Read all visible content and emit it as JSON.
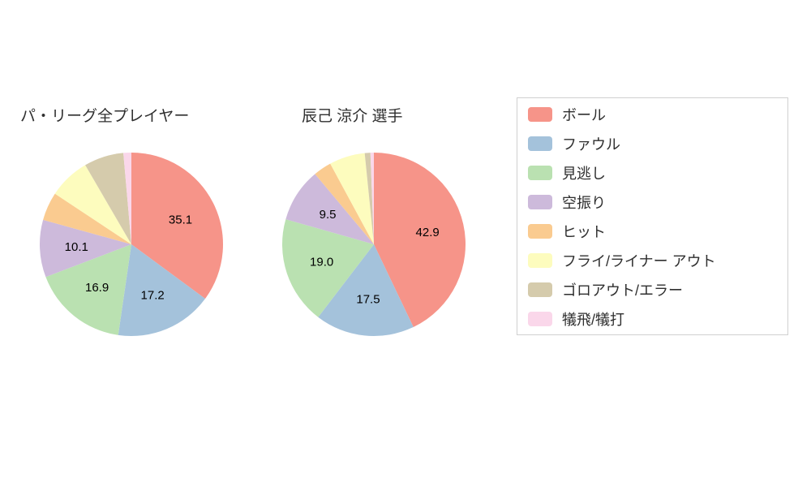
{
  "chart_data": [
    {
      "type": "pie",
      "title": "パ・リーグ全プレイヤー",
      "direction": "clockwise",
      "start_angle_deg": 0,
      "slices": [
        {
          "name": "ボール",
          "value": 35.1,
          "label": "35.1"
        },
        {
          "name": "ファウル",
          "value": 17.2,
          "label": "17.2"
        },
        {
          "name": "見逃し",
          "value": 16.9,
          "label": "16.9"
        },
        {
          "name": "空振り",
          "value": 10.1,
          "label": "10.1"
        },
        {
          "name": "ヒット",
          "value": 5.0,
          "label": ""
        },
        {
          "name": "フライ/ライナー アウト",
          "value": 7.3,
          "label": ""
        },
        {
          "name": "ゴロアウト/エラー",
          "value": 7.0,
          "label": ""
        },
        {
          "name": "犠飛/犠打",
          "value": 1.4,
          "label": ""
        }
      ]
    },
    {
      "type": "pie",
      "title": "辰己 涼介  選手",
      "direction": "clockwise",
      "start_angle_deg": 0,
      "slices": [
        {
          "name": "ボール",
          "value": 42.9,
          "label": "42.9"
        },
        {
          "name": "ファウル",
          "value": 17.5,
          "label": "17.5"
        },
        {
          "name": "見逃し",
          "value": 19.0,
          "label": "19.0"
        },
        {
          "name": "空振り",
          "value": 9.5,
          "label": "9.5"
        },
        {
          "name": "ヒット",
          "value": 3.2,
          "label": ""
        },
        {
          "name": "フライ/ライナー アウト",
          "value": 6.3,
          "label": ""
        },
        {
          "name": "ゴロアウト/エラー",
          "value": 1.0,
          "label": ""
        },
        {
          "name": "犠飛/犠打",
          "value": 0.6,
          "label": ""
        }
      ]
    }
  ],
  "legend": {
    "items": [
      "ボール",
      "ファウル",
      "見逃し",
      "空振り",
      "ヒット",
      "フライ/ライナー アウト",
      "ゴロアウト/エラー",
      "犠飛/犠打"
    ]
  },
  "colors": {
    "ボール": "#f69489",
    "ファウル": "#a4c2db",
    "見逃し": "#bae1b1",
    "空振り": "#cdbadb",
    "ヒット": "#facb90",
    "フライ/ライナー アウト": "#fdfcbe",
    "ゴロアウト/エラー": "#d5cbac",
    "犠飛/犠打": "#fad7ea"
  },
  "label_color": "#000000",
  "background": "#ffffff"
}
